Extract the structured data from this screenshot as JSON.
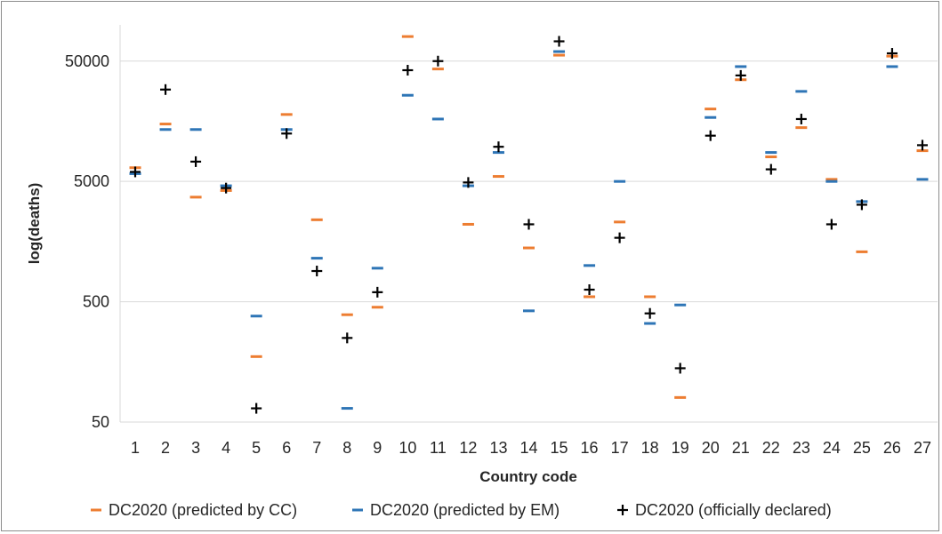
{
  "chart_data": {
    "type": "scatter",
    "xlabel": "Country code",
    "ylabel": "log(deaths)",
    "yscale": "log",
    "ylim": [
      50,
      100000
    ],
    "yticks": [
      50,
      500,
      5000,
      50000
    ],
    "ytick_labels": [
      "50",
      "500",
      "5000",
      "50000"
    ],
    "categories": [
      "1",
      "2",
      "3",
      "4",
      "5",
      "6",
      "7",
      "8",
      "9",
      "10",
      "11",
      "12",
      "13",
      "14",
      "15",
      "16",
      "17",
      "18",
      "19",
      "20",
      "21",
      "22",
      "23",
      "24",
      "25",
      "26",
      "27"
    ],
    "grid": "horizontal",
    "legend_position": "bottom",
    "series": [
      {
        "name": "DC2020 (predicted by CC)",
        "marker": "dash",
        "color": "#ED7D31",
        "values": [
          6500,
          15000,
          3700,
          4200,
          175,
          18000,
          2400,
          390,
          450,
          80000,
          43000,
          2200,
          5500,
          1400,
          56000,
          550,
          2300,
          550,
          80,
          20000,
          35000,
          8000,
          14000,
          5200,
          1300,
          55000,
          9000
        ]
      },
      {
        "name": "DC2020 (predicted by EM)",
        "marker": "dash",
        "color": "#2E75B6",
        "values": [
          5800,
          13500,
          13500,
          4600,
          380,
          13500,
          1150,
          65,
          950,
          26000,
          16500,
          4600,
          8700,
          420,
          60000,
          1000,
          5000,
          330,
          470,
          17000,
          45000,
          8700,
          28000,
          5000,
          3400,
          45000,
          5200
        ]
      },
      {
        "name": "DC2020 (officially declared)",
        "marker": "plus",
        "color": "#000000",
        "values": [
          6000,
          29000,
          7300,
          4400,
          65,
          12500,
          900,
          250,
          600,
          42000,
          50000,
          4900,
          9700,
          2200,
          73000,
          630,
          1700,
          400,
          140,
          12000,
          38000,
          6300,
          16500,
          2200,
          3200,
          58000,
          10000
        ]
      }
    ]
  }
}
